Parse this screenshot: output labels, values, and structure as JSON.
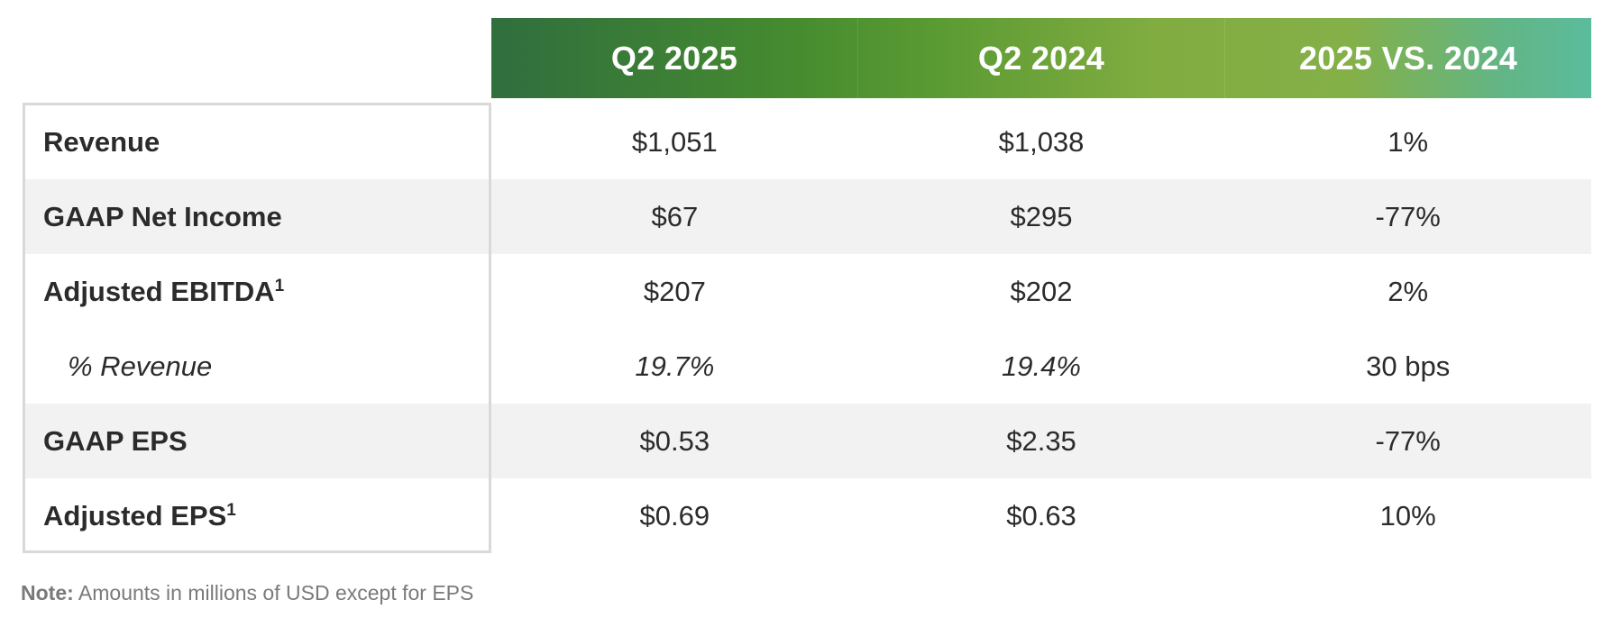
{
  "table": {
    "columns": [
      "Q2 2025",
      "Q2 2024",
      "2025 VS. 2024"
    ],
    "rows": [
      {
        "label": "Revenue",
        "sup": "",
        "values": [
          "$1,051",
          "$1,038",
          "1%"
        ]
      },
      {
        "label": "GAAP Net Income",
        "sup": "",
        "values": [
          "$67",
          "$295",
          "-77%"
        ]
      },
      {
        "label": "Adjusted EBITDA",
        "sup": "1",
        "values": [
          "$207",
          "$202",
          "2%"
        ]
      },
      {
        "label": "% Revenue",
        "sup": "",
        "values": [
          "19.7%",
          "19.4%",
          "30 bps"
        ]
      },
      {
        "label": "GAAP EPS",
        "sup": "",
        "values": [
          "$0.53",
          "$2.35",
          "-77%"
        ]
      },
      {
        "label": "Adjusted EPS",
        "sup": "1",
        "values": [
          "$0.69",
          "$0.63",
          "10%"
        ]
      }
    ]
  },
  "note": {
    "prefix": "Note:",
    "text": " Amounts in millions of USD except for EPS"
  },
  "colors": {
    "header_gradient_start": "#306e3e",
    "header_gradient_mid": "#80ac40",
    "header_gradient_end": "#5bbc9c",
    "row_shade": "#f2f2f2",
    "label_border": "#d9d9d9"
  }
}
